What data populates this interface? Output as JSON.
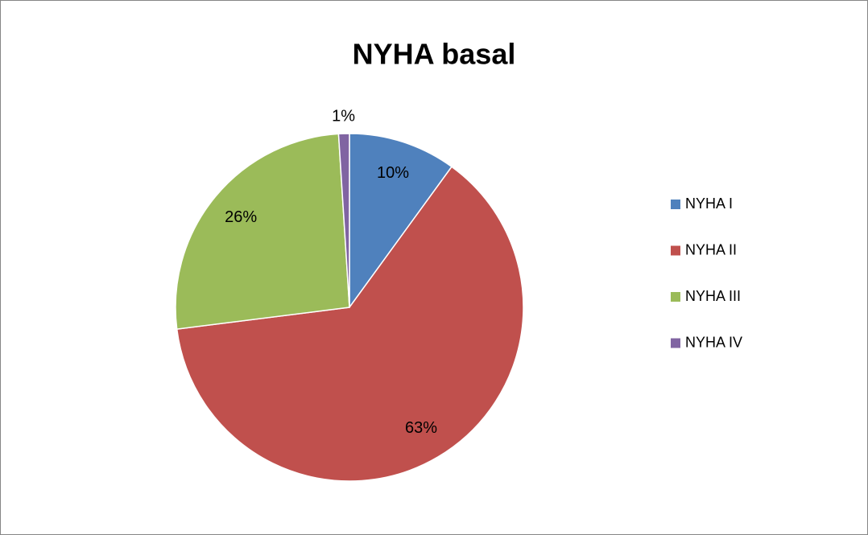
{
  "chart_data": {
    "type": "pie",
    "title": "NYHA basal",
    "categories": [
      "NYHA I",
      "NYHA II",
      "NYHA III",
      "NYHA IV"
    ],
    "values": [
      10,
      63,
      26,
      1
    ],
    "value_labels": [
      "10%",
      "63%",
      "26%",
      "1%"
    ],
    "colors": [
      "#4f81bd",
      "#c0504d",
      "#9bbb59",
      "#8064a2"
    ],
    "legend": "right"
  }
}
